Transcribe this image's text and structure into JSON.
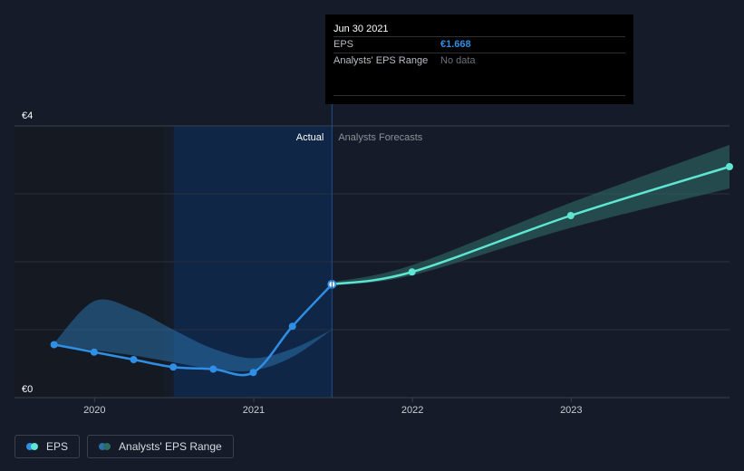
{
  "tooltip": {
    "date": "Jun 30 2021",
    "rows": [
      {
        "label": "EPS",
        "value": "€1.668"
      },
      {
        "label": "Analysts' EPS Range",
        "value": "No data"
      }
    ]
  },
  "legend": [
    {
      "label": "EPS",
      "colors": [
        "#2f8fe6",
        "#5ee6d2"
      ]
    },
    {
      "label": "Analysts' EPS Range",
      "colors": [
        "#2a6fa8",
        "#2f6b65"
      ]
    }
  ],
  "chart_data": {
    "type": "line",
    "ylim": [
      0,
      4
    ],
    "y_tick_labels": [
      "€0",
      "€4"
    ],
    "x_tick_labels": [
      "2020",
      "2021",
      "2022",
      "2023"
    ],
    "x_tick_dates": [
      "2020-01-01",
      "2021-01-01",
      "2022-01-01",
      "2023-01-01"
    ],
    "xlim": [
      "2019-07-01",
      "2023-12-31"
    ],
    "region_labels": {
      "actual": "Actual",
      "forecast": "Analysts Forecasts"
    },
    "highlight_start": "2020-07-01",
    "divider_date": "2021-06-30",
    "colors": {
      "eps_actual": "#2f8fe6",
      "eps_forecast": "#5ee6d2",
      "range_actual": "#2a6fa8",
      "range_forecast": "#2f6b65",
      "highlight": "#0f2647",
      "divider": "#1f4f8a"
    },
    "series": [
      {
        "name": "EPS",
        "points": [
          {
            "x": "2019-09-30",
            "y": 0.78
          },
          {
            "x": "2019-12-31",
            "y": 0.67
          },
          {
            "x": "2020-03-31",
            "y": 0.56
          },
          {
            "x": "2020-06-30",
            "y": 0.45
          },
          {
            "x": "2020-09-30",
            "y": 0.42
          },
          {
            "x": "2020-12-31",
            "y": 0.37
          },
          {
            "x": "2021-03-31",
            "y": 1.05
          },
          {
            "x": "2021-06-30",
            "y": 1.668
          }
        ]
      },
      {
        "name": "EPS",
        "points": [
          {
            "x": "2021-06-30",
            "y": 1.668
          },
          {
            "x": "2021-12-31",
            "y": 1.85
          },
          {
            "x": "2022-12-31",
            "y": 2.68
          },
          {
            "x": "2023-12-31",
            "y": 3.4
          }
        ]
      },
      {
        "name": "Analysts' EPS Range",
        "low": [
          {
            "x": "2019-09-30",
            "y": 0.78
          },
          {
            "x": "2019-12-31",
            "y": 0.7
          },
          {
            "x": "2020-03-31",
            "y": 0.62
          },
          {
            "x": "2020-06-30",
            "y": 0.52
          },
          {
            "x": "2020-09-30",
            "y": 0.42
          },
          {
            "x": "2020-12-31",
            "y": 0.4
          },
          {
            "x": "2021-03-31",
            "y": 0.6
          },
          {
            "x": "2021-06-30",
            "y": 1.0
          }
        ],
        "high": [
          {
            "x": "2019-09-30",
            "y": 0.8
          },
          {
            "x": "2019-12-31",
            "y": 1.42
          },
          {
            "x": "2020-03-31",
            "y": 1.3
          },
          {
            "x": "2020-06-30",
            "y": 1.0
          },
          {
            "x": "2020-09-30",
            "y": 0.72
          },
          {
            "x": "2020-12-31",
            "y": 0.58
          },
          {
            "x": "2021-03-31",
            "y": 0.72
          },
          {
            "x": "2021-06-30",
            "y": 1.0
          }
        ]
      },
      {
        "name": "Analysts' EPS Range",
        "low": [
          {
            "x": "2021-06-30",
            "y": 1.65
          },
          {
            "x": "2021-12-31",
            "y": 1.8
          },
          {
            "x": "2022-12-31",
            "y": 2.5
          },
          {
            "x": "2023-12-31",
            "y": 3.08
          }
        ],
        "high": [
          {
            "x": "2021-06-30",
            "y": 1.7
          },
          {
            "x": "2021-12-31",
            "y": 1.95
          },
          {
            "x": "2022-12-31",
            "y": 2.87
          },
          {
            "x": "2023-12-31",
            "y": 3.72
          }
        ]
      }
    ]
  }
}
